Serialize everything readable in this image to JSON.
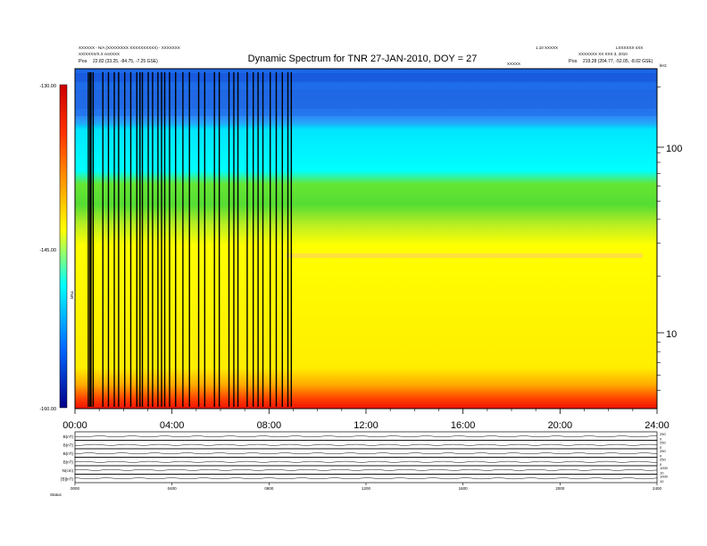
{
  "header": {
    "title": "Dynamic Spectrum for TNR 27-JAN-2010, DOY = 27",
    "small_left_1": "XXXXXX - N/A (XXXXXXXX XXXXXXXXXX) - XXXXXXX",
    "small_left_2": "XX/XXXX/X.X nnXXXX",
    "small_center": "XXXXX",
    "small_right_1": "1.10 XXXXX",
    "small_right_2": "XXXXXXX XX XXX 3, 2010",
    "small_far_right": "LXXXXXX nXX",
    "pos_left_label": "Pos",
    "pos_left_value": "22.82 (33.25, -84.75, -7.25 GSE)",
    "pos_right_label": "Pos",
    "pos_right_value": "219.28 (204.77, -52.05, -8.02 GSE)",
    "units_label": "kHz"
  },
  "colorbar": {
    "label": "TNR",
    "ticks": [
      "-130.00",
      "-145.00",
      "-160.00"
    ],
    "colors": [
      "#cc0000",
      "#ff3300",
      "#ff9900",
      "#ffff00",
      "#00ffff",
      "#0000ff",
      "#000088"
    ]
  },
  "chart_data": [
    {
      "type": "heatmap",
      "title": "Dynamic Spectrum for TNR 27-JAN-2010, DOY = 27",
      "x_ticks": [
        "00:00",
        "04:00",
        "08:00",
        "12:00",
        "16:00",
        "20:00",
        "24:00"
      ],
      "x_range_hours": [
        0,
        24
      ],
      "y_scale": "log",
      "y_unit": "kHz",
      "y_ticks": [
        10,
        100
      ],
      "y_range_khz": [
        4,
        250
      ],
      "colorbar_range": [
        -160,
        -130
      ],
      "colorbar_ticks": [
        -130,
        -145,
        -160
      ],
      "band_colors": {
        "top_low_intensity": "#1a66e6",
        "upper_mid": "#00ffff",
        "middle": "#55dd33",
        "lower_mid": "#ffff00",
        "bottom_high_intensity": "#ff2a00"
      },
      "data_gap_lines_hours": [
        0.55,
        0.62,
        0.66,
        0.75,
        1.15,
        1.38,
        1.62,
        1.8,
        2.05,
        2.3,
        2.55,
        2.68,
        2.78,
        3.02,
        3.2,
        3.42,
        3.57,
        3.7,
        3.9,
        4.15,
        4.45,
        4.72,
        5.1,
        5.35,
        5.75,
        5.95,
        6.35,
        6.55,
        6.72,
        7.1,
        7.35,
        7.55,
        7.75,
        8.05,
        8.3,
        8.55,
        8.78,
        8.92
      ]
    },
    {
      "type": "line",
      "panels": [
        {
          "label": "B(nT)",
          "right_ticks": [
            "250",
            "0"
          ]
        },
        {
          "label": "B(nT)",
          "right_ticks": [
            "250",
            "0"
          ]
        },
        {
          "label": "B(nT)",
          "right_ticks": [
            "250",
            "0"
          ]
        },
        {
          "label": "B(nT)",
          "right_ticks": [
            "250",
            "0"
          ]
        },
        {
          "label": "N(cm)",
          "right_ticks": [
            "1000",
            "10"
          ]
        },
        {
          "label": "[B](nT)",
          "right_ticks": [
            "1000",
            "10"
          ]
        }
      ],
      "x_ticks": [
        "0000",
        "0400",
        "0800",
        "1200",
        "1600",
        "2000",
        "2400"
      ],
      "footer_label": "Status"
    }
  ]
}
